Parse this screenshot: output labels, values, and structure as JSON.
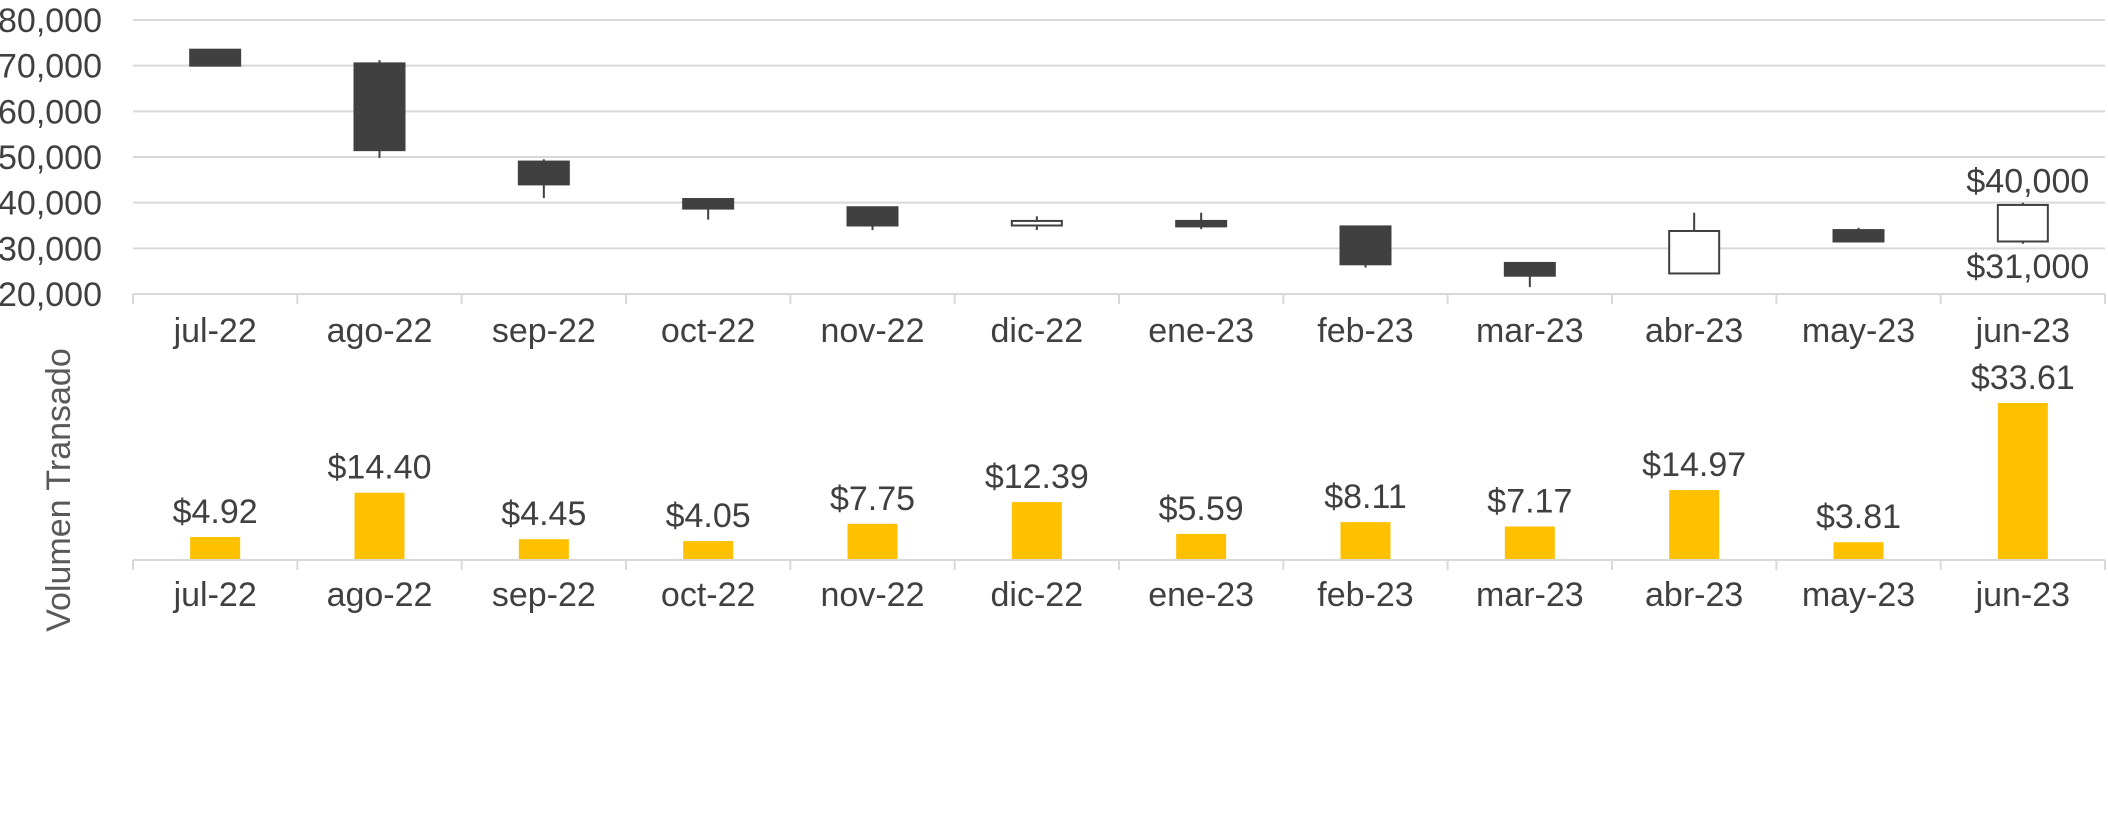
{
  "chart_data": [
    {
      "type": "candlestick",
      "categories": [
        "jul-22",
        "ago-22",
        "sep-22",
        "oct-22",
        "nov-22",
        "dic-22",
        "ene-23",
        "feb-23",
        "mar-23",
        "abr-23",
        "may-23",
        "jun-23"
      ],
      "series": [
        {
          "open": [
            73500,
            70500,
            49000,
            40800,
            39000,
            35000,
            36000,
            34800,
            26800,
            24500,
            34000,
            31500
          ],
          "high": [
            73500,
            71200,
            49500,
            40800,
            39000,
            37000,
            37800,
            34800,
            27000,
            37800,
            34500,
            40000
          ],
          "low": [
            69800,
            49800,
            41000,
            36300,
            34000,
            34000,
            34200,
            25800,
            21500,
            24500,
            31500,
            31000
          ],
          "close": [
            70000,
            51500,
            44000,
            38700,
            35000,
            36000,
            34800,
            26500,
            24000,
            33800,
            31500,
            39500
          ]
        }
      ],
      "y_ticks": [
        "$20,000",
        "$30,000",
        "$40,000",
        "$50,000",
        "$60,000",
        "$70,000",
        "$80,000"
      ],
      "ylim": [
        20000,
        80000
      ],
      "annotations": {
        "high_label": "$40,000",
        "low_label": "$31,000"
      },
      "colors": {
        "down": "#404040",
        "up": "#ffffff",
        "outline": "#404040"
      },
      "grid": true
    },
    {
      "type": "bar",
      "categories": [
        "jul-22",
        "ago-22",
        "sep-22",
        "oct-22",
        "nov-22",
        "dic-22",
        "ene-23",
        "feb-23",
        "mar-23",
        "abr-23",
        "may-23",
        "jun-23"
      ],
      "values": [
        4.92,
        14.4,
        4.45,
        4.05,
        7.75,
        12.39,
        5.59,
        8.11,
        7.17,
        14.97,
        3.81,
        33.61
      ],
      "value_labels": [
        "$4.92",
        "$14.40",
        "$4.45",
        "$4.05",
        "$7.75",
        "$12.39",
        "$5.59",
        "$8.11",
        "$7.17",
        "$14.97",
        "$3.81",
        "$33.61"
      ],
      "ylabel": "Volumen Transado",
      "color": "#ffc000",
      "grid": false
    }
  ]
}
